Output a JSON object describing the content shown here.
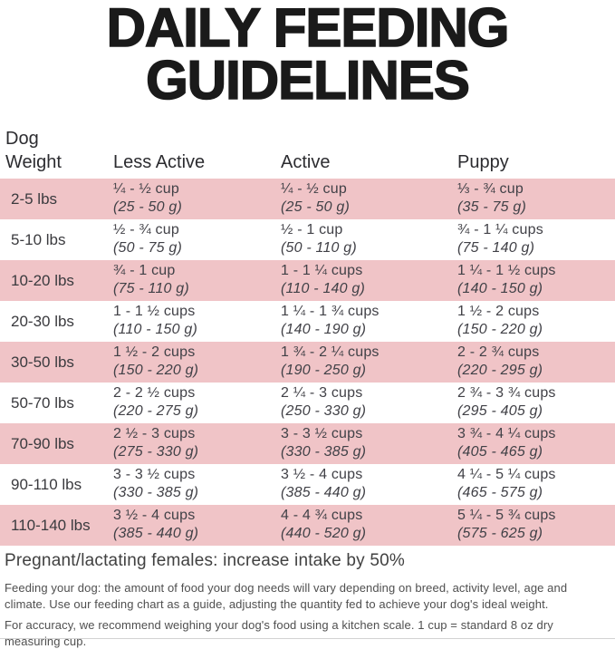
{
  "title": {
    "lines": [
      "DAILY FEEDING",
      "GUIDELINES"
    ]
  },
  "table": {
    "headers": {
      "weight": "Dog Weight",
      "less_active": "Less Active",
      "active": "Active",
      "puppy": "Puppy"
    },
    "rows": [
      {
        "weight": "2-5 lbs",
        "less_active": {
          "cups": "¼ - ½ cup",
          "grams": "(25 - 50 g)"
        },
        "active": {
          "cups": "¼ - ½ cup",
          "grams": "(25 - 50 g)"
        },
        "puppy": {
          "cups": "⅓ - ¾ cup",
          "grams": "(35 - 75 g)"
        }
      },
      {
        "weight": "5-10 lbs",
        "less_active": {
          "cups": "½ - ¾ cup",
          "grams": "(50 - 75 g)"
        },
        "active": {
          "cups": "½ - 1 cup",
          "grams": "(50 - 110 g)"
        },
        "puppy": {
          "cups": "¾ - 1 ¼ cups",
          "grams": "(75 - 140 g)"
        }
      },
      {
        "weight": "10-20 lbs",
        "less_active": {
          "cups": "¾ - 1 cup",
          "grams": "(75 - 110 g)"
        },
        "active": {
          "cups": "1 - 1 ¼ cups",
          "grams": "(110 - 140 g)"
        },
        "puppy": {
          "cups": "1 ¼ - 1 ½ cups",
          "grams": "(140 - 150 g)"
        }
      },
      {
        "weight": "20-30 lbs",
        "less_active": {
          "cups": "1 - 1 ½ cups",
          "grams": "(110 - 150 g)"
        },
        "active": {
          "cups": "1 ¼ - 1 ¾ cups",
          "grams": "(140 - 190 g)"
        },
        "puppy": {
          "cups": "1 ½ - 2 cups",
          "grams": "(150 - 220 g)"
        }
      },
      {
        "weight": "30-50 lbs",
        "less_active": {
          "cups": "1 ½ - 2 cups",
          "grams": "(150 - 220 g)"
        },
        "active": {
          "cups": "1 ¾ - 2 ¼ cups",
          "grams": "(190 - 250 g)"
        },
        "puppy": {
          "cups": "2 - 2 ¾ cups",
          "grams": "(220 - 295 g)"
        }
      },
      {
        "weight": "50-70 lbs",
        "less_active": {
          "cups": "2 - 2 ½ cups",
          "grams": "(220 - 275 g)"
        },
        "active": {
          "cups": "2 ¼ - 3 cups",
          "grams": "(250 - 330 g)"
        },
        "puppy": {
          "cups": "2 ¾ - 3 ¾ cups",
          "grams": "(295 - 405 g)"
        }
      },
      {
        "weight": "70-90 lbs",
        "less_active": {
          "cups": "2 ½ - 3 cups",
          "grams": "(275 - 330 g)"
        },
        "active": {
          "cups": "3 - 3 ½ cups",
          "grams": "(330 - 385 g)"
        },
        "puppy": {
          "cups": "3 ¾ - 4 ¼ cups",
          "grams": "(405 - 465 g)"
        }
      },
      {
        "weight": "90-110 lbs",
        "less_active": {
          "cups": "3 - 3 ½ cups",
          "grams": "(330 - 385 g)"
        },
        "active": {
          "cups": "3 ½ - 4 cups",
          "grams": "(385 - 440 g)"
        },
        "puppy": {
          "cups": "4 ¼ - 5 ¼ cups",
          "grams": "(465 - 575 g)"
        }
      },
      {
        "weight": "110-140 lbs",
        "less_active": {
          "cups": "3 ½ - 4 cups",
          "grams": "(385 - 440 g)"
        },
        "active": {
          "cups": "4 - 4 ¾ cups",
          "grams": "(440 - 520 g)"
        },
        "puppy": {
          "cups": "5 ¼ - 5 ¾ cups",
          "grams": "(575 - 625 g)"
        }
      }
    ]
  },
  "notes": {
    "pregnant": "Pregnant/lactating females: increase intake by 50%",
    "feeding": "Feeding your dog: the amount of food your dog needs will vary depending on breed, activity level, age and climate. Use our feeding chart as a guide, adjusting the quantity fed to achieve your dog's ideal weight.",
    "accuracy": "For accuracy, we recommend weighing your dog's food using a kitchen scale. 1 cup = standard 8 oz dry measuring cup."
  },
  "colors": {
    "row_pink": "#f0c4c7",
    "title_black": "#1a1a1a",
    "table_text": "#414147",
    "note_text": "#4f4f4f"
  }
}
